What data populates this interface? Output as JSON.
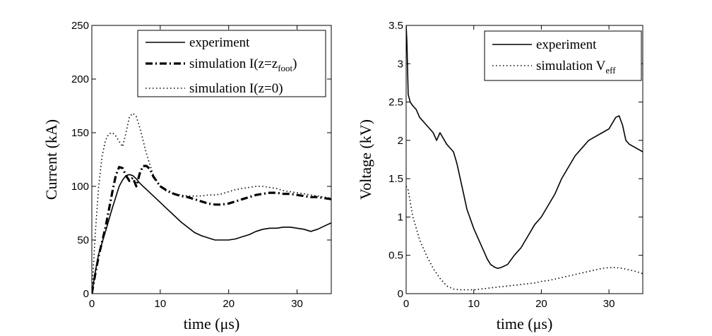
{
  "chart_data": [
    {
      "type": "line",
      "xlabel": "time (μs)",
      "ylabel": "Current (kA)",
      "xlim": [
        0,
        35
      ],
      "ylim": [
        0,
        250
      ],
      "xticks": [
        0,
        10,
        20,
        30
      ],
      "yticks": [
        0,
        50,
        100,
        150,
        200,
        250
      ],
      "xtick_labels": [
        "0",
        "10",
        "20",
        "30"
      ],
      "ytick_labels": [
        "0",
        "50",
        "100",
        "150",
        "200",
        "250"
      ],
      "grid": false,
      "legend_position": "top-right",
      "series": [
        {
          "name": "experiment",
          "style": "solid",
          "x": [
            0,
            0.5,
            1,
            2,
            3,
            4,
            4.5,
            5,
            5.5,
            6,
            6.5,
            7,
            8,
            9,
            10,
            11,
            12,
            13,
            14,
            15,
            16,
            17,
            18,
            19,
            20,
            21,
            22,
            23,
            24,
            25,
            26,
            27,
            28,
            29,
            30,
            31,
            32,
            33,
            34,
            35
          ],
          "y": [
            0,
            20,
            37,
            58,
            80,
            100,
            106,
            110,
            111,
            110,
            107,
            103,
            97,
            91,
            85,
            79,
            73,
            67,
            62,
            57,
            54,
            52,
            50,
            50,
            50,
            51,
            53,
            55,
            58,
            60,
            61,
            61,
            62,
            62,
            61,
            60,
            58,
            60,
            63,
            66
          ]
        },
        {
          "name": "simulation I(z=z_foot)",
          "legend_main": "simulation I(z=z",
          "legend_sub": "foot",
          "legend_close": ")",
          "style": "dashdot",
          "x": [
            0,
            0.5,
            1,
            2,
            3,
            3.5,
            4,
            4.5,
            5,
            5.5,
            6,
            6.5,
            7,
            7.5,
            8,
            8.5,
            9,
            10,
            11,
            12,
            13,
            14,
            15,
            16,
            17,
            18,
            19,
            20,
            21,
            22,
            23,
            24,
            25,
            26,
            27,
            28,
            29,
            30,
            31,
            32,
            33,
            34,
            35
          ],
          "y": [
            0,
            18,
            35,
            62,
            95,
            110,
            118,
            117,
            110,
            105,
            108,
            100,
            112,
            119,
            119,
            116,
            109,
            100,
            96,
            93,
            91,
            90,
            88,
            86,
            84,
            83,
            83,
            84,
            86,
            88,
            90,
            92,
            93,
            94,
            94,
            93,
            93,
            92,
            91,
            90,
            90,
            89,
            88
          ]
        },
        {
          "name": "simulation I(z=0)",
          "style": "dotted",
          "x": [
            0,
            0.5,
            1,
            1.5,
            2,
            2.5,
            3,
            3.5,
            4,
            4.5,
            5,
            5.5,
            6,
            6.5,
            7,
            8,
            9,
            10,
            11,
            12,
            13,
            14,
            15,
            16,
            17,
            18,
            19,
            20,
            21,
            22,
            23,
            24,
            25,
            26,
            27,
            28,
            29,
            30,
            31,
            32,
            33,
            34,
            35
          ],
          "y": [
            0,
            55,
            100,
            128,
            143,
            149,
            150,
            147,
            142,
            137,
            150,
            165,
            168,
            165,
            155,
            130,
            110,
            100,
            95,
            93,
            92,
            91,
            91,
            91,
            92,
            92,
            93,
            95,
            97,
            98,
            99,
            100,
            100,
            99,
            98,
            96,
            95,
            94,
            93,
            92,
            91,
            90,
            89
          ]
        }
      ]
    },
    {
      "type": "line",
      "xlabel": "time (μs)",
      "ylabel": "Voltage (kV)",
      "xlim": [
        0,
        35
      ],
      "ylim": [
        0,
        3.5
      ],
      "xticks": [
        0,
        10,
        20,
        30
      ],
      "yticks": [
        0,
        0.5,
        1,
        1.5,
        2,
        2.5,
        3,
        3.5
      ],
      "xtick_labels": [
        "0",
        "10",
        "20",
        "30"
      ],
      "ytick_labels": [
        "0",
        "0.5",
        "1",
        "1.5",
        "2",
        "2.5",
        "3",
        "3.5"
      ],
      "grid": false,
      "legend_position": "top-right",
      "series": [
        {
          "name": "experiment",
          "style": "solid",
          "x": [
            0,
            0.1,
            0.3,
            0.6,
            1,
            1.5,
            2,
            3,
            4,
            4.5,
            5,
            6,
            7,
            7.5,
            8,
            8.5,
            9,
            10,
            11,
            12,
            12.5,
            13,
            13.5,
            14,
            15,
            16,
            17,
            18,
            19,
            20,
            21,
            22,
            23,
            24,
            25,
            26,
            27,
            28,
            29,
            30,
            31,
            31.5,
            32,
            32.5,
            33,
            34,
            35
          ],
          "y": [
            3.5,
            3.3,
            2.6,
            2.5,
            2.45,
            2.4,
            2.3,
            2.2,
            2.1,
            2.0,
            2.1,
            1.95,
            1.85,
            1.7,
            1.5,
            1.3,
            1.1,
            0.85,
            0.65,
            0.45,
            0.38,
            0.35,
            0.33,
            0.34,
            0.38,
            0.5,
            0.6,
            0.75,
            0.9,
            1.0,
            1.15,
            1.3,
            1.5,
            1.65,
            1.8,
            1.9,
            2.0,
            2.05,
            2.1,
            2.15,
            2.3,
            2.32,
            2.2,
            2.0,
            1.95,
            1.9,
            1.85
          ]
        },
        {
          "name": "simulation V_eff",
          "legend_main": "simulation V",
          "legend_sub": "eff",
          "style": "dotted",
          "x": [
            0,
            0.3,
            0.6,
            1,
            1.5,
            2,
            3,
            4,
            5,
            6,
            7,
            8,
            9,
            10,
            11,
            12,
            13,
            14,
            15,
            16,
            17,
            18,
            19,
            20,
            21,
            22,
            23,
            24,
            25,
            26,
            27,
            28,
            29,
            30,
            31,
            32,
            33,
            34,
            35
          ],
          "y": [
            1.4,
            1.35,
            1.2,
            1.0,
            0.85,
            0.7,
            0.5,
            0.33,
            0.2,
            0.1,
            0.06,
            0.05,
            0.05,
            0.05,
            0.06,
            0.07,
            0.08,
            0.09,
            0.1,
            0.11,
            0.12,
            0.13,
            0.14,
            0.16,
            0.17,
            0.19,
            0.21,
            0.23,
            0.25,
            0.27,
            0.29,
            0.31,
            0.33,
            0.34,
            0.34,
            0.33,
            0.31,
            0.29,
            0.26
          ]
        }
      ]
    }
  ]
}
